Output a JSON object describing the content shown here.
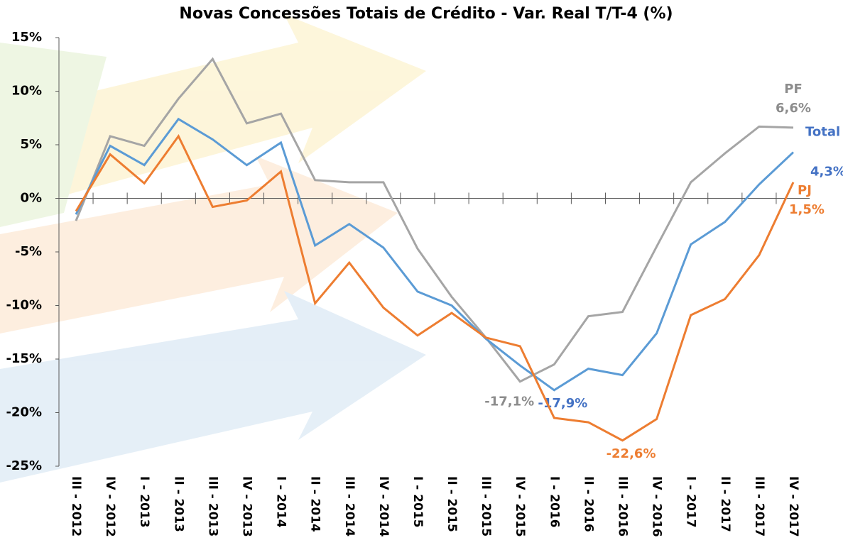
{
  "chart_data": {
    "type": "line",
    "title": "Novas Concessões Totais de Crédito - Var. Real T/T-4 (%)",
    "categories": [
      "III - 2012",
      "IV - 2012",
      "I - 2013",
      "II - 2013",
      "III - 2013",
      "IV - 2013",
      "I - 2014",
      "II - 2014",
      "III - 2014",
      "IV - 2014",
      "I - 2015",
      "II - 2015",
      "III - 2015",
      "IV - 2015",
      "I - 2016",
      "II - 2016",
      "III - 2016",
      "IV - 2016",
      "I - 2017",
      "II - 2017",
      "III - 2017",
      "IV - 2017"
    ],
    "series": [
      {
        "name": "PF",
        "color": "#a5a5a5",
        "label_color": "#8c8c8c",
        "values": [
          -2.1,
          5.8,
          4.9,
          9.3,
          13.0,
          7.0,
          7.9,
          1.7,
          1.5,
          1.5,
          -4.7,
          -9.2,
          -13.0,
          -17.1,
          -15.5,
          -11.0,
          -10.6,
          -4.5,
          1.5,
          4.2,
          6.7,
          6.6
        ],
        "value_labels": [
          null,
          null,
          null,
          null,
          null,
          null,
          null,
          null,
          null,
          null,
          null,
          null,
          null,
          "-17,1%",
          null,
          null,
          null,
          null,
          null,
          null,
          null,
          "6,6%"
        ]
      },
      {
        "name": "Total",
        "color": "#5b9bd5",
        "label_color": "#4472c4",
        "values": [
          -1.5,
          4.9,
          3.1,
          7.4,
          5.5,
          3.1,
          5.2,
          -4.4,
          -2.4,
          -4.6,
          -8.7,
          -10.0,
          -13.1,
          -15.6,
          -17.9,
          -15.9,
          -16.5,
          -12.6,
          -4.3,
          -2.2,
          1.3,
          4.3
        ],
        "value_labels": [
          null,
          null,
          null,
          null,
          null,
          null,
          null,
          null,
          null,
          null,
          null,
          null,
          null,
          null,
          "-17,9%",
          null,
          null,
          null,
          null,
          null,
          null,
          "4,3%"
        ]
      },
      {
        "name": "PJ",
        "color": "#ed7d31",
        "label_color": "#ed7d31",
        "values": [
          -1.2,
          4.1,
          1.4,
          5.8,
          -0.8,
          -0.2,
          2.5,
          -9.8,
          -6.0,
          -10.2,
          -12.8,
          -10.7,
          -13.0,
          -13.8,
          -20.5,
          -20.9,
          -22.6,
          -20.6,
          -10.9,
          -9.4,
          -5.3,
          1.5
        ],
        "value_labels": [
          null,
          null,
          null,
          null,
          null,
          null,
          null,
          null,
          null,
          null,
          null,
          null,
          null,
          null,
          null,
          null,
          "-22,6%",
          null,
          null,
          null,
          null,
          "1,5%"
        ]
      }
    ],
    "ylim": [
      -25,
      15
    ],
    "yticks": [
      {
        "value": -25,
        "label": "-25%"
      },
      {
        "value": -20,
        "label": "-20%"
      },
      {
        "value": -15,
        "label": "-15%"
      },
      {
        "value": -10,
        "label": "-10%"
      },
      {
        "value": -5,
        "label": "-5%"
      },
      {
        "value": 0,
        "label": "0%"
      },
      {
        "value": 5,
        "label": "5%"
      },
      {
        "value": 10,
        "label": "10%"
      },
      {
        "value": 15,
        "label": "15%"
      }
    ]
  }
}
